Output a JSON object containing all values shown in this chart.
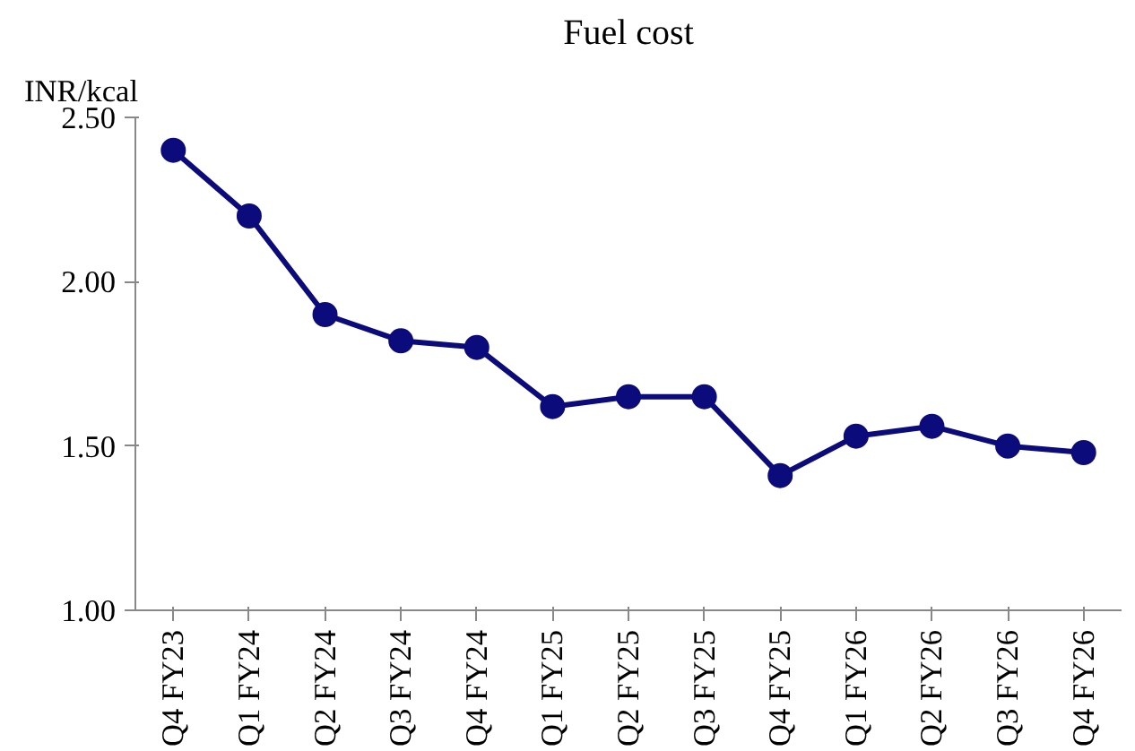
{
  "chart_data": {
    "type": "line",
    "title": "Fuel cost",
    "ylabel": "INR/kcal",
    "categories": [
      "Q4 FY23",
      "Q1 FY24",
      "Q2 FY24",
      "Q3 FY24",
      "Q4 FY24",
      "Q1 FY25",
      "Q2 FY25",
      "Q3 FY25",
      "Q4 FY25",
      "Q1 FY26",
      "Q2 FY26",
      "Q3 FY26",
      "Q4 FY26"
    ],
    "series": [
      {
        "color": "#0b0b7c",
        "values": [
          2.4,
          2.2,
          1.9,
          1.82,
          1.8,
          1.62,
          1.65,
          1.65,
          1.41,
          1.53,
          1.56,
          1.5,
          1.48
        ]
      }
    ],
    "ylim": [
      1.0,
      2.5
    ],
    "yticks": [
      {
        "value": 1.0,
        "label": "1.00"
      },
      {
        "value": 1.5,
        "label": "1.50"
      },
      {
        "value": 2.0,
        "label": "2.00"
      },
      {
        "value": 2.5,
        "label": "2.50"
      }
    ],
    "marker": "circle",
    "line_style": "solid",
    "grid": false
  }
}
